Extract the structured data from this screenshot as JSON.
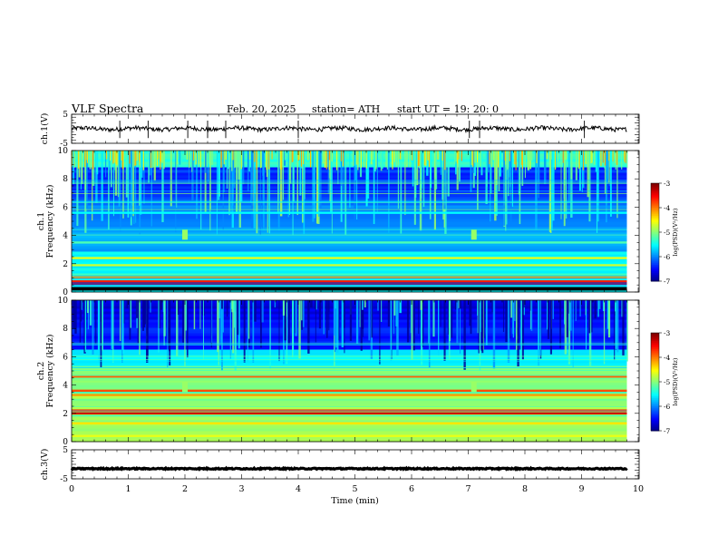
{
  "header": {
    "title": "VLF  Spectra",
    "date": "Feb. 20, 2025",
    "station": "station= ATH",
    "start": "start  UT  =    19: 20: 0"
  },
  "chart_data": {
    "type": "heatmap",
    "xlabel": "Time  (min)",
    "xlim": [
      0,
      10
    ],
    "x_ticks": [
      "0",
      "1",
      "2",
      "3",
      "4",
      "5",
      "6",
      "7",
      "8",
      "9",
      "10"
    ],
    "panels": [
      {
        "id": "ch1-waveform",
        "type": "line",
        "ylabel": "ch.1(V)",
        "ylim": [
          -5,
          5
        ],
        "y_ticks": [
          "5",
          "-5"
        ],
        "data_end_min": 9.8,
        "approx_level": 0,
        "spikes_min": [
          0.85,
          1.35,
          2.05,
          2.4,
          2.72,
          4.0,
          7.02,
          7.2,
          9.05
        ]
      },
      {
        "id": "ch1-spectrogram",
        "type": "heatmap",
        "ylabel": "ch.1\nFrequency  (kHz)",
        "ylim": [
          0,
          10
        ],
        "y_ticks": [
          "0",
          "2",
          "4",
          "6",
          "8",
          "10"
        ],
        "colorbar": {
          "label": "log(PSD)(V²/Hz)",
          "range": [
            -7,
            -3
          ],
          "ticks": [
            "-3",
            "-4",
            "-5",
            "-6",
            "-7"
          ]
        },
        "bands_khz": [
          {
            "f": 0.25,
            "level": -3.0
          },
          {
            "f": 0.75,
            "level": -3.6
          },
          {
            "f": 1.05,
            "level": -3.8
          },
          {
            "f": 1.9,
            "level": -4.6
          },
          {
            "f": 2.4,
            "level": -4.6
          },
          {
            "f": 3.5,
            "level": -5.2
          },
          {
            "f": 5.6,
            "level": -5.5
          }
        ],
        "features_min": [
          2.0,
          7.1
        ]
      },
      {
        "id": "ch2-spectrogram",
        "type": "heatmap",
        "ylabel": "ch.2\nFrequency  (kHz)",
        "ylim": [
          0,
          10
        ],
        "y_ticks": [
          "0",
          "2",
          "4",
          "6",
          "8",
          "10"
        ],
        "colorbar": {
          "label": "log(PSD)(V²/Hz)",
          "range": [
            -7,
            -3
          ],
          "ticks": [
            "-3",
            "-4",
            "-5",
            "-6",
            "-7"
          ]
        },
        "bands_khz": [
          {
            "f": 0.4,
            "level": -4.6
          },
          {
            "f": 1.3,
            "level": -4.4
          },
          {
            "f": 2.0,
            "level": -3.3
          },
          {
            "f": 2.2,
            "level": -3.6
          },
          {
            "f": 3.3,
            "level": -4.1
          },
          {
            "f": 3.6,
            "level": -3.8
          },
          {
            "f": 4.6,
            "level": -3.9
          }
        ],
        "features_min": [
          2.0,
          7.1
        ]
      },
      {
        "id": "ch3-waveform",
        "type": "line",
        "ylabel": "ch.3(V)",
        "ylim": [
          -5,
          5
        ],
        "y_ticks": [
          "5",
          "-5"
        ],
        "data_end_min": 9.8,
        "approx_level": -1.5
      }
    ]
  }
}
